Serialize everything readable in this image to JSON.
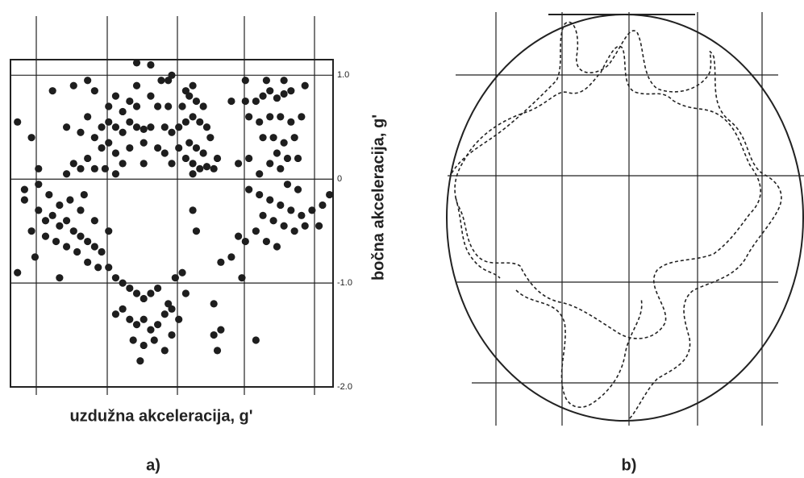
{
  "chart_data": {
    "type": "scatter",
    "x_label": "uzdužna akceleracija, g'",
    "y_label": "bočna akceleracija, g'",
    "panel_label": "a)",
    "color": "#1e1e1e",
    "xlim": [
      -2.4,
      2.2
    ],
    "ylim": [
      -2.0,
      1.15
    ],
    "yticks": [
      {
        "value": 1.0,
        "label": "1.0"
      },
      0,
      {
        "value": -1.0,
        "label": "-1.0"
      },
      {
        "value": -2.0,
        "label": "-2.0"
      }
    ],
    "x": [
      -1.1,
      -1.0,
      -0.9,
      -0.8,
      -0.7,
      -0.6,
      -0.5,
      -0.4,
      -1.2,
      -1.1,
      -1.0,
      -0.9,
      -1.3,
      -1.2,
      -1.4,
      -1.5,
      -1.6,
      -1.0,
      -0.9,
      -0.8,
      -0.7,
      -0.6,
      -1.3,
      -1.4,
      -1.6,
      -1.8,
      -1.5,
      -1.3,
      -1.2,
      -0.6,
      -0.4,
      -0.3,
      -0.5,
      -0.7,
      -0.8,
      -0.5,
      -1.05,
      -0.9,
      -2.0,
      -2.3,
      -2.1,
      -0.25,
      -0.4,
      -0.6,
      -0.3,
      -0.2,
      -0.1,
      0.0,
      0.1,
      0.2,
      0.3,
      0.4,
      0.0,
      0.1,
      0.2,
      0.3,
      0.4,
      0.5,
      -0.1,
      -0.2,
      0.15,
      0.25,
      0.35,
      0.05,
      0.15,
      0.25,
      0.35,
      0.2,
      0.1,
      -0.15,
      -0.1,
      -0.15,
      0.45,
      0.55,
      0.2,
      1.1,
      1.2,
      1.3,
      1.4,
      1.5,
      1.6,
      1.0,
      1.15,
      1.3,
      1.45,
      1.6,
      1.75,
      1.2,
      1.35,
      1.5,
      1.65,
      1.4,
      1.55,
      1.3,
      1.45,
      1.7,
      0.95,
      1.8,
      1.0,
      0.85,
      1.15,
      1.25,
      1.5,
      0.75,
      0.95,
      -2.2,
      -2.0,
      -1.9,
      -1.8,
      -1.7,
      -1.6,
      -1.5,
      -1.4,
      -1.3,
      -1.2,
      -1.1,
      -2.1,
      -1.9,
      -1.75,
      -1.6,
      -1.45,
      -1.3,
      -1.15,
      -2.0,
      -1.85,
      -1.7,
      -1.55,
      -1.4,
      -1.2,
      -1.0,
      -2.3,
      -2.05,
      -1.7,
      -2.2,
      -1.35,
      1.0,
      1.15,
      1.3,
      1.45,
      1.6,
      1.75,
      1.9,
      2.05,
      1.2,
      1.35,
      1.5,
      1.65,
      1.8,
      1.1,
      0.95,
      0.85,
      1.25,
      1.4,
      0.75,
      0.6,
      1.55,
      1.7,
      2.0,
      2.15,
      0.9,
      -1.0,
      -0.9,
      -0.8,
      -0.7,
      -0.6,
      -0.5,
      -0.4,
      -0.3,
      -0.9,
      -0.8,
      -0.7,
      -0.6,
      -0.5,
      -0.4,
      -0.3,
      -0.2,
      -0.1,
      0.0,
      -0.65,
      -0.5,
      -0.35,
      -0.2,
      -0.1,
      -0.55,
      -0.15,
      0.1,
      0.05,
      -0.05,
      0.5,
      0.6,
      0.55,
      1.1,
      0.5,
      0.25,
      0.2
    ],
    "y": [
      0.5,
      0.55,
      0.5,
      0.45,
      0.55,
      0.5,
      0.48,
      0.5,
      0.4,
      0.3,
      0.35,
      0.25,
      0.2,
      0.1,
      0.1,
      0.15,
      0.05,
      0.7,
      0.8,
      0.65,
      0.75,
      0.7,
      0.6,
      0.45,
      0.5,
      0.85,
      0.9,
      0.95,
      0.85,
      0.9,
      0.8,
      0.7,
      0.35,
      0.3,
      0.15,
      0.15,
      0.1,
      0.05,
      0.1,
      0.55,
      0.4,
      0.95,
      1.1,
      1.12,
      0.3,
      0.5,
      0.45,
      0.5,
      0.55,
      0.6,
      0.55,
      0.5,
      0.3,
      0.2,
      0.15,
      0.1,
      0.12,
      0.1,
      0.15,
      0.25,
      0.35,
      0.3,
      0.25,
      0.7,
      0.8,
      0.75,
      0.7,
      0.9,
      0.85,
      0.7,
      1.0,
      0.95,
      0.4,
      0.2,
      0.05,
      0.75,
      0.8,
      0.85,
      0.78,
      0.82,
      0.85,
      0.6,
      0.55,
      0.6,
      0.6,
      0.55,
      0.6,
      0.4,
      0.4,
      0.35,
      0.4,
      0.25,
      0.2,
      0.15,
      0.1,
      0.2,
      0.75,
      0.9,
      0.2,
      0.15,
      0.05,
      0.95,
      0.95,
      0.75,
      0.95,
      -0.2,
      -0.3,
      -0.4,
      -0.35,
      -0.45,
      -0.4,
      -0.5,
      -0.55,
      -0.6,
      -0.65,
      -0.7,
      -0.5,
      -0.55,
      -0.6,
      -0.65,
      -0.7,
      -0.8,
      -0.85,
      -0.05,
      -0.15,
      -0.25,
      -0.2,
      -0.3,
      -0.4,
      -0.5,
      -0.9,
      -0.75,
      -0.95,
      -0.1,
      -0.15,
      -0.1,
      -0.15,
      -0.2,
      -0.25,
      -0.3,
      -0.35,
      -0.3,
      -0.25,
      -0.35,
      -0.4,
      -0.45,
      -0.5,
      -0.45,
      -0.5,
      -0.6,
      -0.55,
      -0.6,
      -0.65,
      -0.75,
      -0.8,
      -0.05,
      -0.1,
      -0.45,
      -0.15,
      -0.95,
      -0.85,
      -0.95,
      -1.0,
      -1.05,
      -1.1,
      -1.15,
      -1.1,
      -1.05,
      -1.3,
      -1.25,
      -1.35,
      -1.4,
      -1.35,
      -1.45,
      -1.4,
      -1.3,
      -1.25,
      -1.35,
      -1.55,
      -1.6,
      -1.55,
      -1.65,
      -1.5,
      -1.75,
      -1.2,
      -1.1,
      -0.9,
      -0.95,
      -1.5,
      -1.45,
      -1.65,
      -1.55,
      -1.2,
      -0.5,
      -0.3
    ]
  },
  "panel_b": {
    "label": "b)"
  }
}
